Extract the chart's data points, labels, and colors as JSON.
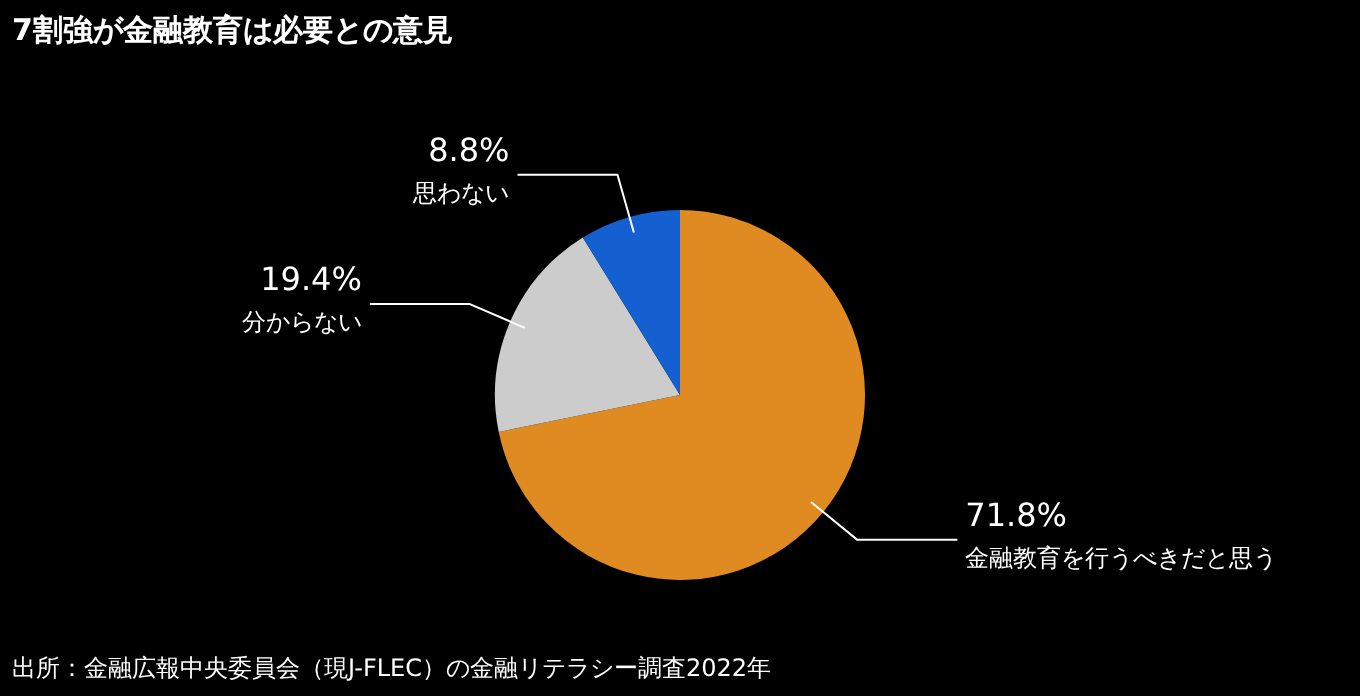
{
  "chart_data": {
    "type": "pie",
    "title": "7割強が金融教育は必要との意見",
    "categories": [
      "金融教育を行うべきだと思う",
      "分からない",
      "思わない"
    ],
    "values": [
      71.8,
      19.4,
      8.8
    ],
    "value_labels": [
      "71.8%",
      "19.4%",
      "8.8%"
    ],
    "colors": [
      "#e08a22",
      "#cccccc",
      "#1560d0"
    ],
    "legend": false,
    "annotations": [
      "出所：金融広報中央委員会（現J-FLEC）の金融リテラシー調査2022年"
    ]
  }
}
